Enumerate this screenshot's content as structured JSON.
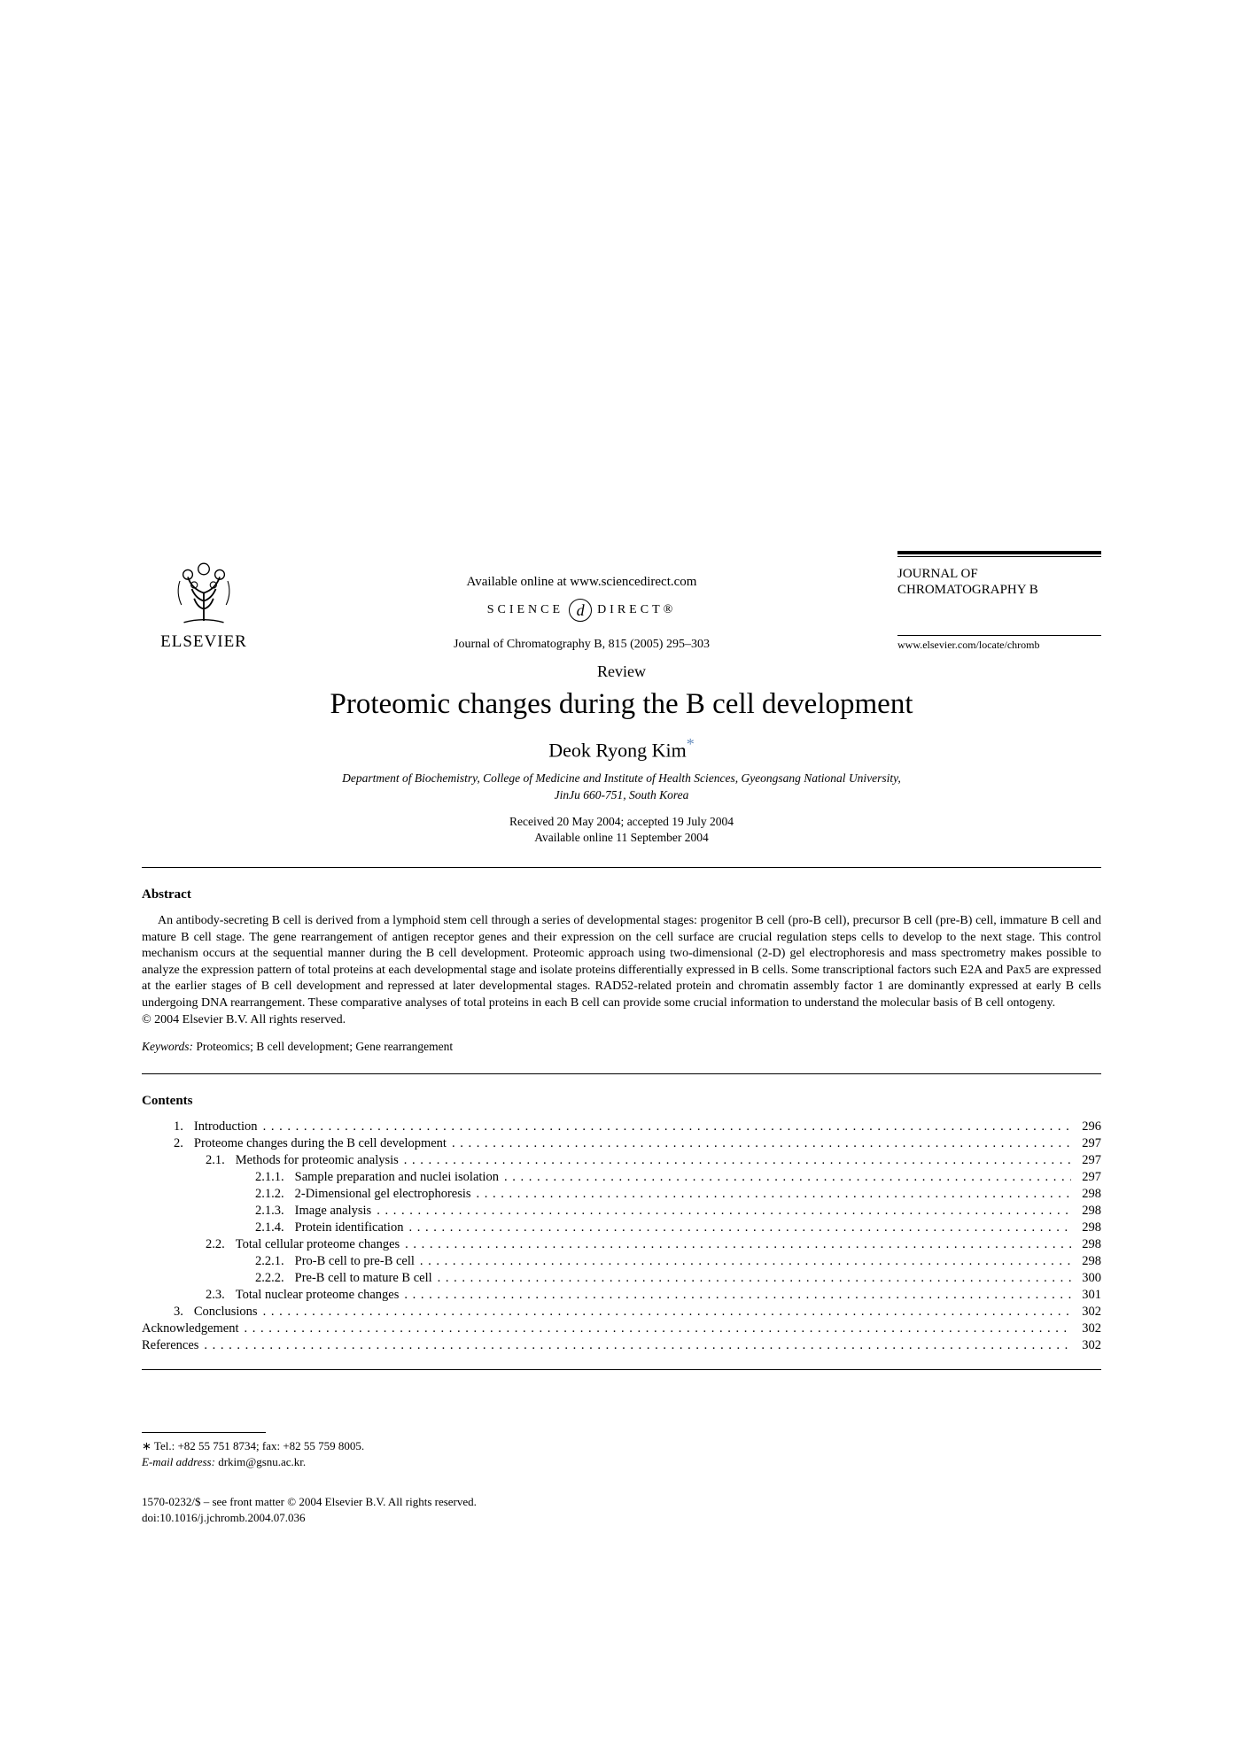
{
  "publisher": {
    "name": "ELSEVIER"
  },
  "header": {
    "available_online": "Available online at www.sciencedirect.com",
    "sd_left": "SCIENCE",
    "sd_right": "DIRECT®",
    "journal_ref": "Journal of Chromatography B, 815 (2005) 295–303"
  },
  "journal_box": {
    "name": "JOURNAL OF CHROMATOGRAPHY B",
    "url": "www.elsevier.com/locate/chromb"
  },
  "article": {
    "type": "Review",
    "title": "Proteomic changes during the B cell development",
    "author": "Deok Ryong Kim",
    "author_mark": "*",
    "affiliation_line1": "Department of Biochemistry, College of Medicine and Institute of Health Sciences, Gyeongsang National University,",
    "affiliation_line2": "JinJu 660-751, South Korea",
    "received": "Received 20 May 2004; accepted 19 July 2004",
    "available": "Available online 11 September 2004"
  },
  "abstract": {
    "heading": "Abstract",
    "body": "An antibody-secreting B cell is derived from a lymphoid stem cell through a series of developmental stages: progenitor B cell (pro-B cell), precursor B cell (pre-B) cell, immature B cell and mature B cell stage. The gene rearrangement of antigen receptor genes and their expression on the cell surface are crucial regulation steps cells to develop to the next stage. This control mechanism occurs at the sequential manner during the B cell development. Proteomic approach using two-dimensional (2-D) gel electrophoresis and mass spectrometry makes possible to analyze the expression pattern of total proteins at each developmental stage and isolate proteins differentially expressed in B cells. Some transcriptional factors such E2A and Pax5 are expressed at the earlier stages of B cell development and repressed at later developmental stages. RAD52-related protein and chromatin assembly factor 1 are dominantly expressed at early B cells undergoing DNA rearrangement. These comparative analyses of total proteins in each B cell can provide some crucial information to understand the molecular basis of B cell ontogeny.",
    "copyright": "© 2004 Elsevier B.V. All rights reserved."
  },
  "keywords": {
    "label": "Keywords:",
    "text": " Proteomics; B cell development; Gene rearrangement"
  },
  "contents": {
    "heading": "Contents",
    "items": [
      {
        "num": "1.",
        "title": "Introduction",
        "page": "296",
        "indent": 1
      },
      {
        "num": "2.",
        "title": "Proteome changes during the B cell development",
        "page": "297",
        "indent": 1
      },
      {
        "num": "2.1.",
        "title": "Methods for proteomic analysis",
        "page": "297",
        "indent": 2
      },
      {
        "num": "2.1.1.",
        "title": "Sample preparation and nuclei isolation",
        "page": "297",
        "indent": 3
      },
      {
        "num": "2.1.2.",
        "title": "2-Dimensional gel electrophoresis",
        "page": "298",
        "indent": 3
      },
      {
        "num": "2.1.3.",
        "title": "Image analysis",
        "page": "298",
        "indent": 3
      },
      {
        "num": "2.1.4.",
        "title": "Protein identification",
        "page": "298",
        "indent": 3
      },
      {
        "num": "2.2.",
        "title": "Total cellular proteome changes",
        "page": "298",
        "indent": 2
      },
      {
        "num": "2.2.1.",
        "title": "Pro-B cell to pre-B cell",
        "page": "298",
        "indent": 3
      },
      {
        "num": "2.2.2.",
        "title": "Pre-B cell to mature B cell",
        "page": "300",
        "indent": 3
      },
      {
        "num": "2.3.",
        "title": "Total nuclear proteome changes",
        "page": "301",
        "indent": 2
      },
      {
        "num": "3.",
        "title": "Conclusions",
        "page": "302",
        "indent": 1
      },
      {
        "num": "",
        "title": "Acknowledgement",
        "page": "302",
        "indent": 0
      },
      {
        "num": "",
        "title": "References",
        "page": "302",
        "indent": 0
      }
    ]
  },
  "footnote": {
    "mark": "∗",
    "contact": " Tel.: +82 55 751 8734; fax: +82 55 759 8005.",
    "email_label": "E-mail address:",
    "email": " drkim@gsnu.ac.kr."
  },
  "bottom": {
    "line1": "1570-0232/$ – see front matter © 2004 Elsevier B.V. All rights reserved.",
    "line2": "doi:10.1016/j.jchromb.2004.07.036"
  },
  "style": {
    "link_color": "#6a8fbf"
  }
}
